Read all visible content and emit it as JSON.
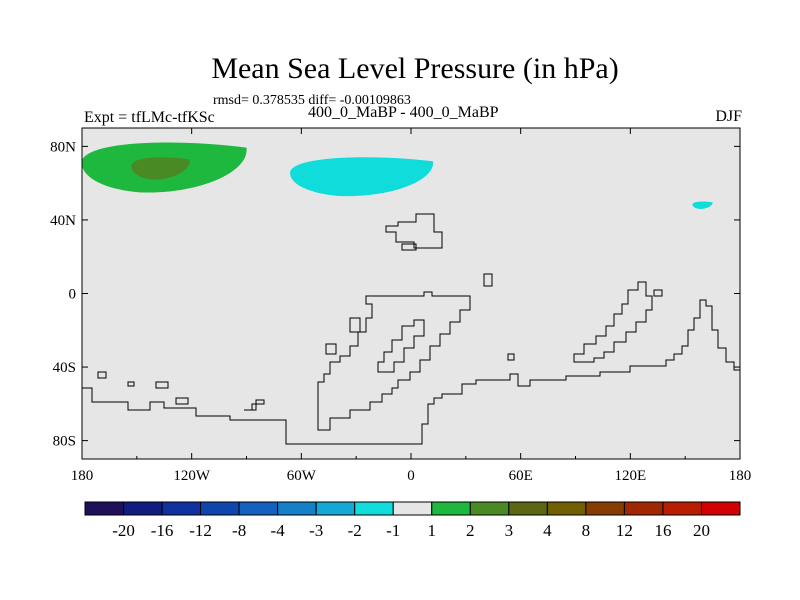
{
  "title": "Mean Sea Level Pressure (in hPa)",
  "stats_line": "rmsd= 0.378535 diff= -0.00109863",
  "experiment_label": "Expt = tfLMc-tfKSc",
  "center_label": "400_0_MaBP - 400_0_MaBP",
  "season_label": "DJF",
  "chart_data": {
    "type": "heatmap",
    "title": "Mean Sea Level Pressure (in hPa)",
    "subtitle": "400_0_MaBP - 400_0_MaBP",
    "xlabel": "",
    "ylabel": "",
    "xlim": [
      -180,
      180
    ],
    "ylim": [
      -90,
      90
    ],
    "x_ticks": [
      -180,
      -120,
      -60,
      0,
      60,
      120,
      180
    ],
    "x_tick_labels": [
      "180",
      "120W",
      "60W",
      "0",
      "60E",
      "120E",
      "180"
    ],
    "y_ticks": [
      80,
      40,
      0,
      -40,
      -80
    ],
    "y_tick_labels": [
      "80N",
      "40N",
      "0",
      "40S",
      "80S"
    ],
    "colorbar": {
      "levels": [
        -20,
        -16,
        -12,
        -8,
        -4,
        -3,
        -2,
        -1,
        1,
        2,
        3,
        4,
        8,
        12,
        16,
        20
      ],
      "level_labels": [
        "-20",
        "-16",
        "-12",
        "-8",
        "-4",
        "-3",
        "-2",
        "-1",
        "1",
        "2",
        "3",
        "4",
        "8",
        "12",
        "16",
        "20"
      ],
      "colors": [
        "#20105a",
        "#101c80",
        "#1030a0",
        "#0f46ad",
        "#1462c0",
        "#1580c8",
        "#15a7d6",
        "#10dcdc",
        "#e6e6e6",
        "#1fb83f",
        "#4a8a24",
        "#5d6614",
        "#706000",
        "#883d00",
        "#a02800",
        "#b81e00",
        "#d20000"
      ]
    },
    "anomalies": [
      {
        "name": "positive-anomaly-north-pacific",
        "level": "1 to 2",
        "color": "#1fb83f",
        "lon": [
          -180,
          -90
        ],
        "lat": [
          55,
          82
        ]
      },
      {
        "name": "positive-anomaly-north-pacific-core",
        "level": "2 to 3",
        "color": "#4a8a24",
        "lon": [
          -153,
          -121
        ],
        "lat": [
          62,
          74
        ]
      },
      {
        "name": "negative-anomaly-north-atlantic",
        "level": "-2 to -1",
        "color": "#10dcdc",
        "lon": [
          -66,
          12
        ],
        "lat": [
          53,
          74
        ]
      },
      {
        "name": "negative-anomaly-east-asia",
        "level": "-2 to -1",
        "color": "#10dcdc",
        "lon": [
          154,
          165
        ],
        "lat": [
          46,
          50
        ]
      }
    ],
    "contour_lines": "land boundaries (tf paleogeography)"
  }
}
